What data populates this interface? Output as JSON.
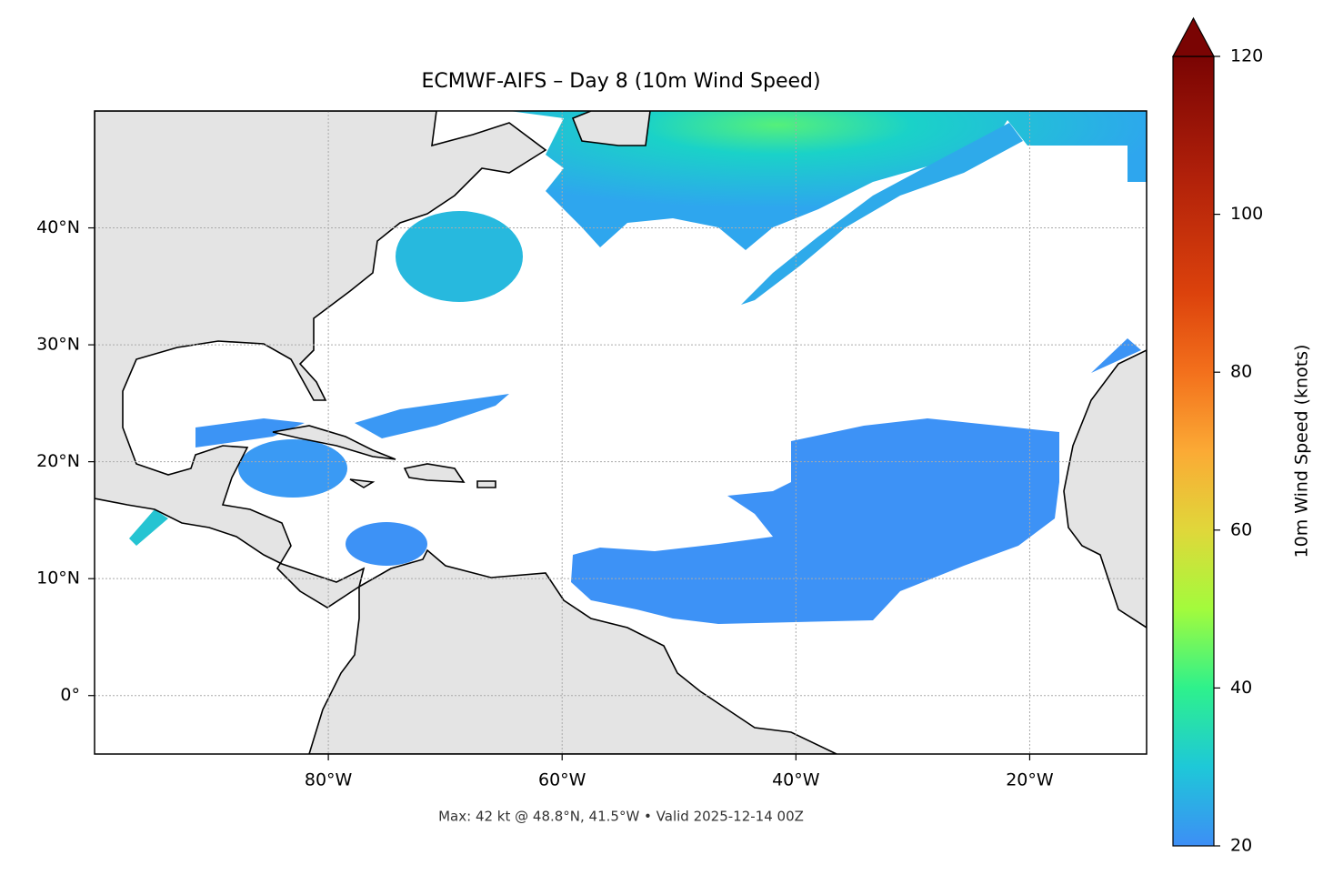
{
  "map": {
    "title": "ECMWF-AIFS – Day 8 (10m Wind Speed)",
    "footer": "Max: 42 kt @ 48.8°N, 41.5°W • Valid 2025-12-14 00Z",
    "lon_range": [
      -100,
      -10
    ],
    "lat_range": [
      -5,
      50
    ],
    "lon_ticks": [
      {
        "value": -80,
        "label": "80°W"
      },
      {
        "value": -60,
        "label": "60°W"
      },
      {
        "value": -40,
        "label": "40°W"
      },
      {
        "value": -20,
        "label": "20°W"
      }
    ],
    "lat_ticks": [
      {
        "value": 0,
        "label": "0°"
      },
      {
        "value": 10,
        "label": "10°N"
      },
      {
        "value": 20,
        "label": "20°N"
      },
      {
        "value": 30,
        "label": "30°N"
      },
      {
        "value": 40,
        "label": "40°N"
      }
    ],
    "grid": true,
    "colorbar": {
      "label": "10m Wind Speed (knots)",
      "range": [
        20,
        120
      ],
      "ticks": [
        20,
        40,
        60,
        80,
        100,
        120
      ],
      "extend": "max"
    }
  }
}
